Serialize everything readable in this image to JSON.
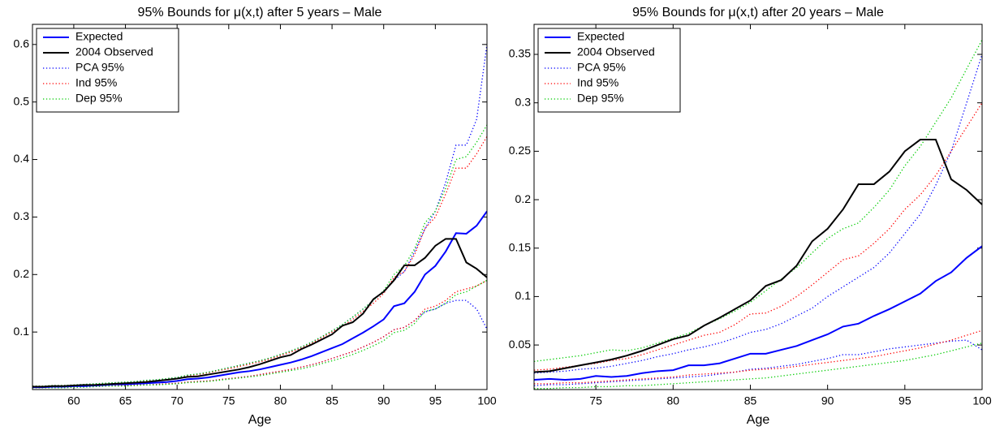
{
  "chart_data": [
    {
      "type": "line",
      "title": "95% Bounds for μ(x,t) after 5 years – Male",
      "x_label": "Age",
      "x": [
        56,
        57,
        58,
        59,
        60,
        61,
        62,
        63,
        64,
        65,
        66,
        67,
        68,
        69,
        70,
        71,
        72,
        73,
        74,
        75,
        76,
        77,
        78,
        79,
        80,
        81,
        82,
        83,
        84,
        85,
        86,
        87,
        88,
        89,
        90,
        91,
        92,
        93,
        94,
        95,
        96,
        97,
        98,
        99,
        100
      ],
      "xlim": [
        56,
        100
      ],
      "xticks": [
        60,
        65,
        70,
        75,
        80,
        85,
        90,
        95,
        100
      ],
      "ylim": [
        0,
        0.635
      ],
      "yticks": [
        0.1,
        0.2,
        0.3,
        0.4,
        0.5,
        0.6
      ],
      "legend": "upper left",
      "series": [
        {
          "name": "Expected",
          "color": "#0000ff",
          "style": "solid",
          "values": [
            0.004,
            0.004,
            0.005,
            0.005,
            0.006,
            0.006,
            0.007,
            0.008,
            0.009,
            0.009,
            0.01,
            0.011,
            0.012,
            0.013,
            0.015,
            0.018,
            0.019,
            0.021,
            0.024,
            0.027,
            0.03,
            0.032,
            0.035,
            0.039,
            0.043,
            0.047,
            0.052,
            0.058,
            0.065,
            0.072,
            0.079,
            0.089,
            0.099,
            0.11,
            0.122,
            0.145,
            0.15,
            0.17,
            0.2,
            0.215,
            0.24,
            0.272,
            0.271,
            0.285,
            0.31
          ]
        },
        {
          "name": "2004 Observed",
          "color": "#000000",
          "style": "solid",
          "values": [
            0.005,
            0.005,
            0.006,
            0.006,
            0.007,
            0.008,
            0.008,
            0.009,
            0.01,
            0.011,
            0.012,
            0.013,
            0.015,
            0.017,
            0.019,
            0.022,
            0.023,
            0.026,
            0.029,
            0.032,
            0.035,
            0.039,
            0.044,
            0.05,
            0.056,
            0.06,
            0.07,
            0.078,
            0.087,
            0.096,
            0.111,
            0.117,
            0.132,
            0.157,
            0.17,
            0.19,
            0.216,
            0.216,
            0.229,
            0.25,
            0.262,
            0.262,
            0.221,
            0.21,
            0.195
          ]
        },
        {
          "name": "PCA 95%",
          "color": "#0000ff",
          "style": "dotted",
          "values": [
            0.006,
            0.006,
            0.007,
            0.007,
            0.008,
            0.009,
            0.01,
            0.011,
            0.012,
            0.013,
            0.014,
            0.016,
            0.017,
            0.019,
            0.021,
            0.025,
            0.027,
            0.03,
            0.034,
            0.038,
            0.042,
            0.046,
            0.05,
            0.055,
            0.061,
            0.067,
            0.074,
            0.082,
            0.092,
            0.102,
            0.113,
            0.126,
            0.14,
            0.155,
            0.172,
            0.19,
            0.205,
            0.24,
            0.28,
            0.31,
            0.36,
            0.425,
            0.425,
            0.47,
            0.6
          ],
          "lower": [
            0.003,
            0.003,
            0.004,
            0.004,
            0.004,
            0.005,
            0.005,
            0.006,
            0.007,
            0.007,
            0.008,
            0.008,
            0.009,
            0.01,
            0.011,
            0.013,
            0.014,
            0.015,
            0.017,
            0.019,
            0.021,
            0.023,
            0.026,
            0.029,
            0.032,
            0.035,
            0.039,
            0.043,
            0.048,
            0.054,
            0.06,
            0.066,
            0.074,
            0.082,
            0.092,
            0.104,
            0.108,
            0.12,
            0.135,
            0.14,
            0.15,
            0.155,
            0.155,
            0.14,
            0.105
          ]
        },
        {
          "name": "Ind 95%",
          "color": "#ff0000",
          "style": "dotted",
          "values": [
            0.006,
            0.006,
            0.007,
            0.007,
            0.008,
            0.008,
            0.009,
            0.01,
            0.011,
            0.012,
            0.013,
            0.015,
            0.016,
            0.018,
            0.02,
            0.024,
            0.026,
            0.029,
            0.033,
            0.036,
            0.04,
            0.044,
            0.048,
            0.053,
            0.059,
            0.065,
            0.072,
            0.08,
            0.09,
            0.1,
            0.11,
            0.122,
            0.136,
            0.15,
            0.167,
            0.195,
            0.205,
            0.235,
            0.28,
            0.3,
            0.34,
            0.385,
            0.385,
            0.41,
            0.44
          ],
          "lower": [
            0.003,
            0.003,
            0.004,
            0.004,
            0.004,
            0.005,
            0.005,
            0.006,
            0.007,
            0.007,
            0.008,
            0.008,
            0.009,
            0.01,
            0.011,
            0.013,
            0.014,
            0.015,
            0.017,
            0.019,
            0.021,
            0.023,
            0.026,
            0.029,
            0.032,
            0.035,
            0.039,
            0.043,
            0.048,
            0.054,
            0.06,
            0.066,
            0.074,
            0.082,
            0.092,
            0.104,
            0.108,
            0.12,
            0.14,
            0.145,
            0.155,
            0.17,
            0.175,
            0.18,
            0.19
          ]
        },
        {
          "name": "Dep 95%",
          "color": "#00cc00",
          "style": "dotted",
          "values": [
            0.006,
            0.006,
            0.007,
            0.007,
            0.008,
            0.009,
            0.01,
            0.011,
            0.012,
            0.013,
            0.014,
            0.016,
            0.017,
            0.019,
            0.021,
            0.025,
            0.027,
            0.03,
            0.034,
            0.038,
            0.042,
            0.046,
            0.05,
            0.055,
            0.061,
            0.067,
            0.074,
            0.082,
            0.092,
            0.102,
            0.113,
            0.126,
            0.14,
            0.155,
            0.172,
            0.2,
            0.215,
            0.245,
            0.29,
            0.31,
            0.35,
            0.4,
            0.405,
            0.43,
            0.46
          ],
          "lower": [
            0.003,
            0.003,
            0.003,
            0.003,
            0.004,
            0.004,
            0.005,
            0.006,
            0.006,
            0.006,
            0.007,
            0.008,
            0.008,
            0.009,
            0.01,
            0.012,
            0.013,
            0.014,
            0.016,
            0.018,
            0.02,
            0.022,
            0.024,
            0.027,
            0.03,
            0.033,
            0.036,
            0.04,
            0.045,
            0.05,
            0.055,
            0.061,
            0.068,
            0.076,
            0.085,
            0.099,
            0.103,
            0.115,
            0.136,
            0.14,
            0.15,
            0.165,
            0.17,
            0.18,
            0.19
          ]
        }
      ]
    },
    {
      "type": "line",
      "title": "95% Bounds for μ(x,t) after 20 years – Male",
      "x_label": "Age",
      "x": [
        71,
        72,
        73,
        74,
        75,
        76,
        77,
        78,
        79,
        80,
        81,
        82,
        83,
        84,
        85,
        86,
        87,
        88,
        89,
        90,
        91,
        92,
        93,
        94,
        95,
        96,
        97,
        98,
        99,
        100
      ],
      "xlim": [
        71,
        100
      ],
      "xticks": [
        75,
        80,
        85,
        90,
        95,
        100
      ],
      "ylim": [
        0.004,
        0.381
      ],
      "yticks": [
        0.05,
        0.1,
        0.15,
        0.2,
        0.25,
        0.3,
        0.35
      ],
      "legend": "upper left",
      "series": [
        {
          "name": "Expected",
          "color": "#0000ff",
          "style": "solid",
          "values": [
            0.014,
            0.015,
            0.014,
            0.015,
            0.018,
            0.017,
            0.018,
            0.021,
            0.023,
            0.024,
            0.029,
            0.029,
            0.031,
            0.036,
            0.041,
            0.041,
            0.045,
            0.049,
            0.055,
            0.061,
            0.069,
            0.072,
            0.08,
            0.087,
            0.095,
            0.103,
            0.116,
            0.125,
            0.14,
            0.152
          ]
        },
        {
          "name": "2004 Observed",
          "color": "#000000",
          "style": "solid",
          "values": [
            0.022,
            0.023,
            0.026,
            0.029,
            0.032,
            0.035,
            0.039,
            0.044,
            0.05,
            0.056,
            0.06,
            0.07,
            0.078,
            0.087,
            0.096,
            0.111,
            0.117,
            0.132,
            0.157,
            0.17,
            0.19,
            0.216,
            0.216,
            0.229,
            0.25,
            0.262,
            0.262,
            0.221,
            0.21,
            0.195
          ]
        },
        {
          "name": "PCA 95%",
          "color": "#0000ff",
          "style": "dotted",
          "values": [
            0.021,
            0.022,
            0.023,
            0.025,
            0.026,
            0.028,
            0.031,
            0.034,
            0.038,
            0.041,
            0.045,
            0.048,
            0.052,
            0.057,
            0.063,
            0.066,
            0.072,
            0.08,
            0.088,
            0.1,
            0.11,
            0.12,
            0.13,
            0.145,
            0.165,
            0.185,
            0.215,
            0.25,
            0.3,
            0.35
          ],
          "lower": [
            0.008,
            0.009,
            0.009,
            0.01,
            0.011,
            0.012,
            0.013,
            0.014,
            0.015,
            0.016,
            0.017,
            0.018,
            0.02,
            0.022,
            0.025,
            0.026,
            0.028,
            0.03,
            0.033,
            0.036,
            0.04,
            0.04,
            0.043,
            0.046,
            0.048,
            0.05,
            0.052,
            0.054,
            0.055,
            0.045
          ]
        },
        {
          "name": "Ind 95%",
          "color": "#ff0000",
          "style": "dotted",
          "values": [
            0.024,
            0.025,
            0.027,
            0.029,
            0.031,
            0.034,
            0.036,
            0.04,
            0.045,
            0.05,
            0.055,
            0.06,
            0.063,
            0.071,
            0.082,
            0.083,
            0.09,
            0.1,
            0.112,
            0.125,
            0.138,
            0.142,
            0.155,
            0.17,
            0.19,
            0.205,
            0.225,
            0.25,
            0.275,
            0.3
          ],
          "lower": [
            0.01,
            0.01,
            0.011,
            0.011,
            0.012,
            0.013,
            0.014,
            0.015,
            0.016,
            0.017,
            0.019,
            0.02,
            0.021,
            0.022,
            0.024,
            0.025,
            0.026,
            0.028,
            0.03,
            0.032,
            0.034,
            0.036,
            0.038,
            0.041,
            0.044,
            0.047,
            0.051,
            0.055,
            0.06,
            0.065
          ]
        },
        {
          "name": "Dep 95%",
          "color": "#00cc00",
          "style": "dotted",
          "values": [
            0.033,
            0.035,
            0.037,
            0.039,
            0.042,
            0.045,
            0.044,
            0.047,
            0.052,
            0.057,
            0.062,
            0.07,
            0.077,
            0.085,
            0.094,
            0.106,
            0.118,
            0.13,
            0.145,
            0.16,
            0.17,
            0.176,
            0.192,
            0.21,
            0.235,
            0.255,
            0.28,
            0.305,
            0.335,
            0.365
          ],
          "lower": [
            0.005,
            0.005,
            0.006,
            0.006,
            0.007,
            0.007,
            0.008,
            0.008,
            0.009,
            0.01,
            0.011,
            0.012,
            0.013,
            0.014,
            0.015,
            0.016,
            0.018,
            0.02,
            0.022,
            0.024,
            0.026,
            0.028,
            0.03,
            0.032,
            0.034,
            0.037,
            0.04,
            0.044,
            0.048,
            0.052
          ]
        }
      ]
    }
  ]
}
